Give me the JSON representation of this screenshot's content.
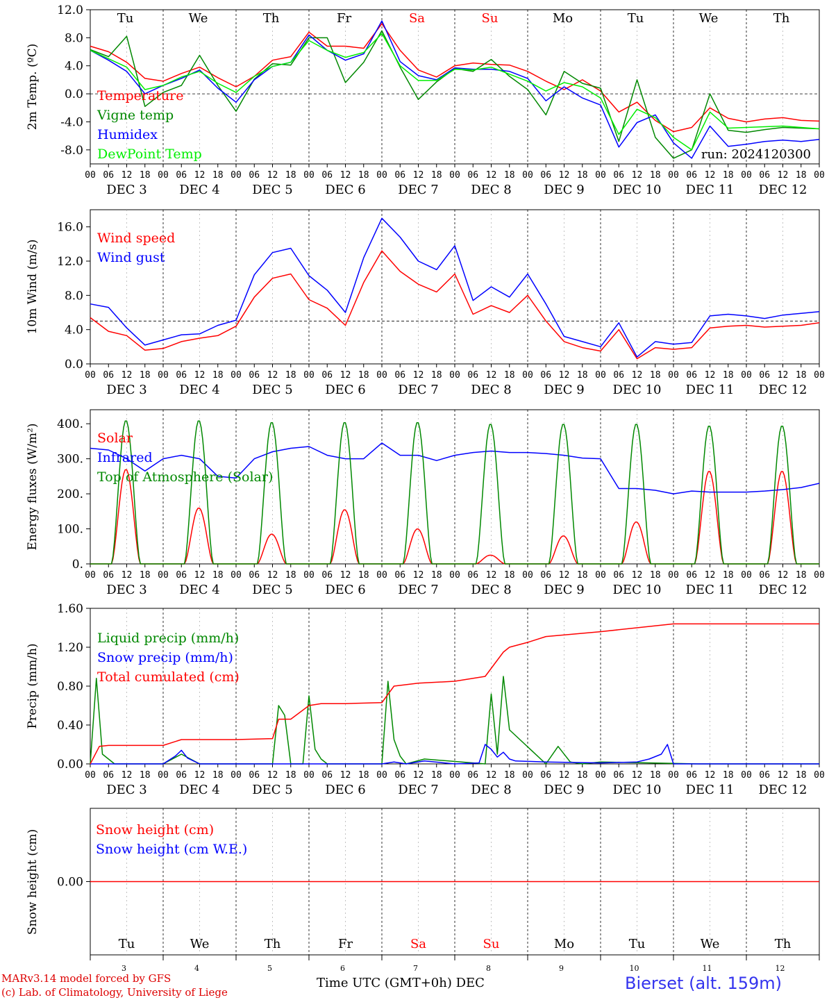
{
  "meta": {
    "run_label": "run: 2024120300",
    "model_line": "MARv3.14 model forced by GFS",
    "credit_line": "(c) Lab. of Climatology, University of Liege",
    "xaxis_label": "Time UTC (GMT+0h) DEC",
    "station": "Bierset (alt. 159m)"
  },
  "colors": {
    "temperature": "#ff0000",
    "vigne": "#008800",
    "humidex": "#0000ff",
    "dewpoint": "#00ee00",
    "wind_speed": "#ff0000",
    "wind_gust": "#0000ff",
    "solar": "#ff0000",
    "infrared": "#0000ff",
    "toa": "#008800",
    "liquid": "#008800",
    "snow": "#0000ff",
    "cumulated": "#ff0000",
    "weekend": "#ff0000"
  },
  "days": {
    "weekday_labels": [
      "Tu",
      "We",
      "Th",
      "Fr",
      "Sa",
      "Su",
      "Mo",
      "Tu",
      "We",
      "Th"
    ],
    "weekend_flags": [
      false,
      false,
      false,
      false,
      true,
      true,
      false,
      false,
      false,
      false
    ],
    "date_labels": [
      "DEC  3",
      "DEC  4",
      "DEC  5",
      "DEC  6",
      "DEC  7",
      "DEC  8",
      "DEC  9",
      "DEC 10",
      "DEC 11",
      "DEC 12"
    ],
    "day_numbers": [
      "3",
      "4",
      "5",
      "6",
      "7",
      "8",
      "9",
      "10",
      "11",
      "12"
    ],
    "hour_ticks": [
      "00",
      "06",
      "12",
      "18"
    ],
    "final_tick": "00"
  },
  "chart_data": [
    {
      "type": "line",
      "ylabel": "2m Temp. (ºC)",
      "yticks": [
        "12.0",
        "8.0",
        "4.0",
        "0.0",
        "-4.0",
        "-8.0"
      ],
      "ylim": [
        -10,
        12
      ],
      "x_unit": "hours since DEC 3 00 UTC",
      "series": [
        {
          "name": "Temperature",
          "x": [
            0,
            6,
            12,
            18,
            24,
            30,
            36,
            42,
            48,
            54,
            60,
            66,
            72,
            78,
            84,
            90,
            96,
            102,
            108,
            114,
            120,
            126,
            132,
            138,
            144,
            150,
            156,
            162,
            168,
            174,
            180,
            186,
            192,
            198,
            204,
            210,
            216,
            222,
            228,
            234,
            240
          ],
          "values": [
            6.8,
            6.0,
            4.5,
            2.2,
            1.8,
            2.9,
            3.8,
            2.3,
            1.0,
            2.5,
            4.8,
            5.3,
            8.8,
            6.8,
            6.8,
            6.5,
            10.0,
            6.2,
            3.4,
            2.4,
            4.0,
            4.4,
            4.2,
            4.1,
            3.2,
            1.8,
            0.6,
            2.0,
            0.4,
            -2.6,
            -1.2,
            -3.8,
            -5.4,
            -4.8,
            -2.0,
            -3.5,
            -4.0,
            -3.6,
            -3.4,
            -3.8,
            -3.9
          ]
        },
        {
          "name": "Vigne temp",
          "x": [
            0,
            6,
            12,
            18,
            24,
            30,
            36,
            42,
            48,
            54,
            60,
            66,
            72,
            78,
            84,
            90,
            96,
            102,
            108,
            114,
            120,
            126,
            132,
            138,
            144,
            150,
            156,
            162,
            168,
            174,
            180,
            186,
            192,
            198,
            204,
            210,
            216,
            222,
            228,
            234,
            240
          ],
          "values": [
            6.3,
            5.3,
            8.2,
            -1.8,
            0.2,
            1.2,
            5.5,
            1.2,
            -2.5,
            2.1,
            4.3,
            4.1,
            8.0,
            8.0,
            1.6,
            4.5,
            9.0,
            3.8,
            -0.8,
            1.7,
            3.6,
            3.2,
            4.9,
            2.5,
            0.6,
            -3.0,
            3.2,
            1.5,
            0.8,
            -6.8,
            2.0,
            -6.2,
            -9.2,
            -8.0,
            0.0,
            -5.2,
            -5.5,
            -5.1,
            -4.8,
            -4.9,
            -5.0
          ]
        },
        {
          "name": "Humidex",
          "x": [
            0,
            6,
            12,
            18,
            24,
            30,
            36,
            42,
            48,
            54,
            60,
            66,
            72,
            78,
            84,
            90,
            96,
            102,
            108,
            114,
            120,
            126,
            132,
            138,
            144,
            150,
            156,
            162,
            168,
            174,
            180,
            186,
            192,
            198,
            204,
            210,
            216,
            222,
            228,
            234,
            240
          ],
          "values": [
            6.2,
            4.8,
            3.2,
            0.0,
            1.2,
            2.2,
            3.4,
            0.8,
            -1.2,
            2.0,
            3.9,
            4.5,
            8.4,
            6.2,
            4.8,
            5.7,
            10.4,
            4.6,
            2.6,
            2.0,
            3.7,
            3.5,
            3.5,
            3.2,
            2.2,
            -1.0,
            1.0,
            -0.6,
            -1.6,
            -7.6,
            -4.1,
            -3.0,
            -7.0,
            -9.2,
            -4.6,
            -7.5,
            -7.2,
            -6.8,
            -6.6,
            -6.8,
            -6.5
          ]
        },
        {
          "name": "DewPoint Temp",
          "x": [
            0,
            6,
            12,
            18,
            24,
            30,
            36,
            42,
            48,
            54,
            60,
            66,
            72,
            78,
            84,
            90,
            96,
            102,
            108,
            114,
            120,
            126,
            132,
            138,
            144,
            150,
            156,
            162,
            168,
            174,
            180,
            186,
            192,
            198,
            204,
            210,
            216,
            222,
            228,
            234,
            240
          ],
          "values": [
            6.2,
            5.0,
            3.8,
            0.6,
            1.2,
            2.4,
            3.2,
            1.5,
            0.2,
            2.5,
            3.9,
            4.5,
            7.6,
            6.2,
            5.2,
            5.9,
            8.6,
            4.0,
            1.9,
            1.9,
            3.5,
            3.4,
            3.8,
            2.8,
            1.8,
            0.4,
            1.6,
            1.0,
            -0.6,
            -5.8,
            -2.2,
            -3.4,
            -6.2,
            -8.0,
            -2.6,
            -4.9,
            -4.8,
            -4.7,
            -4.6,
            -4.8,
            -5.0
          ]
        }
      ]
    },
    {
      "type": "line",
      "ylabel": "10m Wind (m/s)",
      "yticks": [
        "16.0",
        "12.0",
        "8.0",
        "4.0",
        "0.0"
      ],
      "ylim": [
        0,
        18
      ],
      "x_unit": "hours since DEC 3 00 UTC",
      "series": [
        {
          "name": "Wind speed",
          "x": [
            0,
            6,
            12,
            18,
            24,
            30,
            36,
            42,
            48,
            54,
            60,
            66,
            72,
            78,
            84,
            90,
            96,
            102,
            108,
            114,
            120,
            126,
            132,
            138,
            144,
            150,
            156,
            162,
            168,
            174,
            180,
            186,
            192,
            198,
            204,
            210,
            216,
            222,
            228,
            234,
            240
          ],
          "values": [
            5.4,
            3.8,
            3.3,
            1.6,
            1.8,
            2.6,
            3.0,
            3.3,
            4.4,
            7.8,
            10.0,
            10.5,
            7.5,
            6.5,
            4.5,
            9.5,
            13.2,
            10.8,
            9.3,
            8.4,
            10.5,
            5.8,
            6.8,
            6.0,
            8.0,
            5.0,
            2.6,
            1.9,
            1.5,
            4.0,
            0.6,
            1.9,
            1.7,
            1.9,
            4.2,
            4.4,
            4.5,
            4.3,
            4.4,
            4.5,
            4.8
          ]
        },
        {
          "name": "Wind gust",
          "x": [
            0,
            6,
            12,
            18,
            24,
            30,
            36,
            42,
            48,
            54,
            60,
            66,
            72,
            78,
            84,
            90,
            96,
            102,
            108,
            114,
            120,
            126,
            132,
            138,
            144,
            150,
            156,
            162,
            168,
            174,
            180,
            186,
            192,
            198,
            204,
            210,
            216,
            222,
            228,
            234,
            240
          ],
          "values": [
            7.0,
            6.6,
            4.2,
            2.2,
            2.8,
            3.4,
            3.5,
            4.5,
            5.1,
            10.4,
            13.0,
            13.5,
            10.3,
            8.6,
            6.0,
            12.4,
            17.0,
            14.8,
            12.0,
            11.0,
            13.8,
            7.4,
            9.0,
            7.8,
            10.5,
            7.0,
            3.2,
            2.6,
            2.0,
            4.8,
            0.8,
            2.6,
            2.3,
            2.5,
            5.6,
            5.8,
            5.6,
            5.3,
            5.7,
            5.9,
            6.1
          ]
        }
      ]
    },
    {
      "type": "line",
      "ylabel": "Energy fluxes (W/m²)",
      "yticks": [
        "400.",
        "300.",
        "200.",
        "100.",
        "0."
      ],
      "ylim": [
        0,
        440
      ],
      "x_unit": "hours since DEC 3 00 UTC",
      "series": [
        {
          "name": "Solar",
          "daily_peak": [
            270,
            160,
            85,
            155,
            100,
            25,
            80,
            120,
            265,
            265
          ]
        },
        {
          "name": "Infrared",
          "x": [
            0,
            6,
            12,
            18,
            24,
            30,
            36,
            42,
            48,
            54,
            60,
            66,
            72,
            78,
            84,
            90,
            96,
            102,
            108,
            114,
            120,
            126,
            132,
            138,
            144,
            150,
            156,
            162,
            168,
            174,
            180,
            186,
            192,
            198,
            204,
            210,
            216,
            222,
            228,
            234,
            240
          ],
          "values": [
            330,
            325,
            300,
            265,
            300,
            310,
            300,
            250,
            245,
            300,
            320,
            330,
            335,
            310,
            300,
            300,
            345,
            310,
            310,
            295,
            310,
            318,
            322,
            318,
            318,
            315,
            310,
            302,
            300,
            215,
            215,
            210,
            200,
            208,
            205,
            205,
            205,
            208,
            212,
            218,
            230
          ]
        },
        {
          "name": "Top of Atmosphere (Solar)",
          "daily_peak": [
            410,
            410,
            405,
            405,
            405,
            400,
            400,
            400,
            395,
            395
          ]
        }
      ]
    },
    {
      "type": "line",
      "ylabel": "Precip (mm/h)",
      "yticks": [
        "1.60",
        "1.20",
        "0.80",
        "0.40",
        "0.00"
      ],
      "ylim": [
        0,
        1.6
      ],
      "x_unit": "hours since DEC 3 00 UTC",
      "series": [
        {
          "name": "Liquid precip (mm/h)",
          "x": [
            0,
            2,
            4,
            8,
            24,
            30,
            33,
            36,
            60,
            62,
            64,
            66,
            70,
            72,
            74,
            76,
            78,
            96,
            98,
            100,
            102,
            104,
            110,
            130,
            132,
            134,
            136,
            138,
            150,
            154,
            158,
            162,
            168,
            200,
            240
          ],
          "values": [
            0,
            0.88,
            0.1,
            0,
            0,
            0.1,
            0.05,
            0,
            0,
            0.6,
            0.5,
            0,
            0,
            0.7,
            0.15,
            0.05,
            0,
            0,
            0.85,
            0.25,
            0.08,
            0,
            0.05,
            0,
            0.72,
            0.1,
            0.9,
            0.35,
            0,
            0.18,
            0.02,
            0,
            0.02,
            0,
            0
          ]
        },
        {
          "name": "Snow precip (mm/h)",
          "x": [
            0,
            24,
            28,
            30,
            32,
            36,
            40,
            60,
            96,
            100,
            104,
            110,
            120,
            128,
            130,
            132,
            134,
            136,
            138,
            140,
            150,
            168,
            180,
            184,
            188,
            190,
            192,
            200,
            240
          ],
          "values": [
            0,
            0,
            0.08,
            0.14,
            0.06,
            0,
            0,
            0,
            0,
            0.02,
            0,
            0.03,
            0,
            0.01,
            0.2,
            0.15,
            0.07,
            0.12,
            0.05,
            0.03,
            0.02,
            0.01,
            0.02,
            0.05,
            0.1,
            0.2,
            0,
            0,
            0
          ]
        },
        {
          "name": "Total cumulated (cm)",
          "x": [
            0,
            3,
            6,
            24,
            30,
            36,
            48,
            60,
            62,
            66,
            72,
            76,
            84,
            96,
            100,
            108,
            120,
            130,
            136,
            138,
            144,
            150,
            168,
            192,
            240
          ],
          "values": [
            0,
            0.18,
            0.19,
            0.19,
            0.25,
            0.25,
            0.25,
            0.26,
            0.46,
            0.46,
            0.6,
            0.62,
            0.62,
            0.63,
            0.8,
            0.83,
            0.85,
            0.9,
            1.15,
            1.2,
            1.25,
            1.31,
            1.36,
            1.44,
            1.44
          ]
        }
      ]
    },
    {
      "type": "line",
      "ylabel": "Snow height (cm)",
      "yticks": [
        "0.00"
      ],
      "x_unit": "hours since DEC 3 00 UTC",
      "series": [
        {
          "name": "Snow height (cm)",
          "x": [
            0,
            240
          ],
          "values": [
            0,
            0
          ]
        },
        {
          "name": "Snow height (cm W.E.)",
          "x": [
            0,
            240
          ],
          "values": [
            0,
            0
          ]
        }
      ]
    }
  ]
}
